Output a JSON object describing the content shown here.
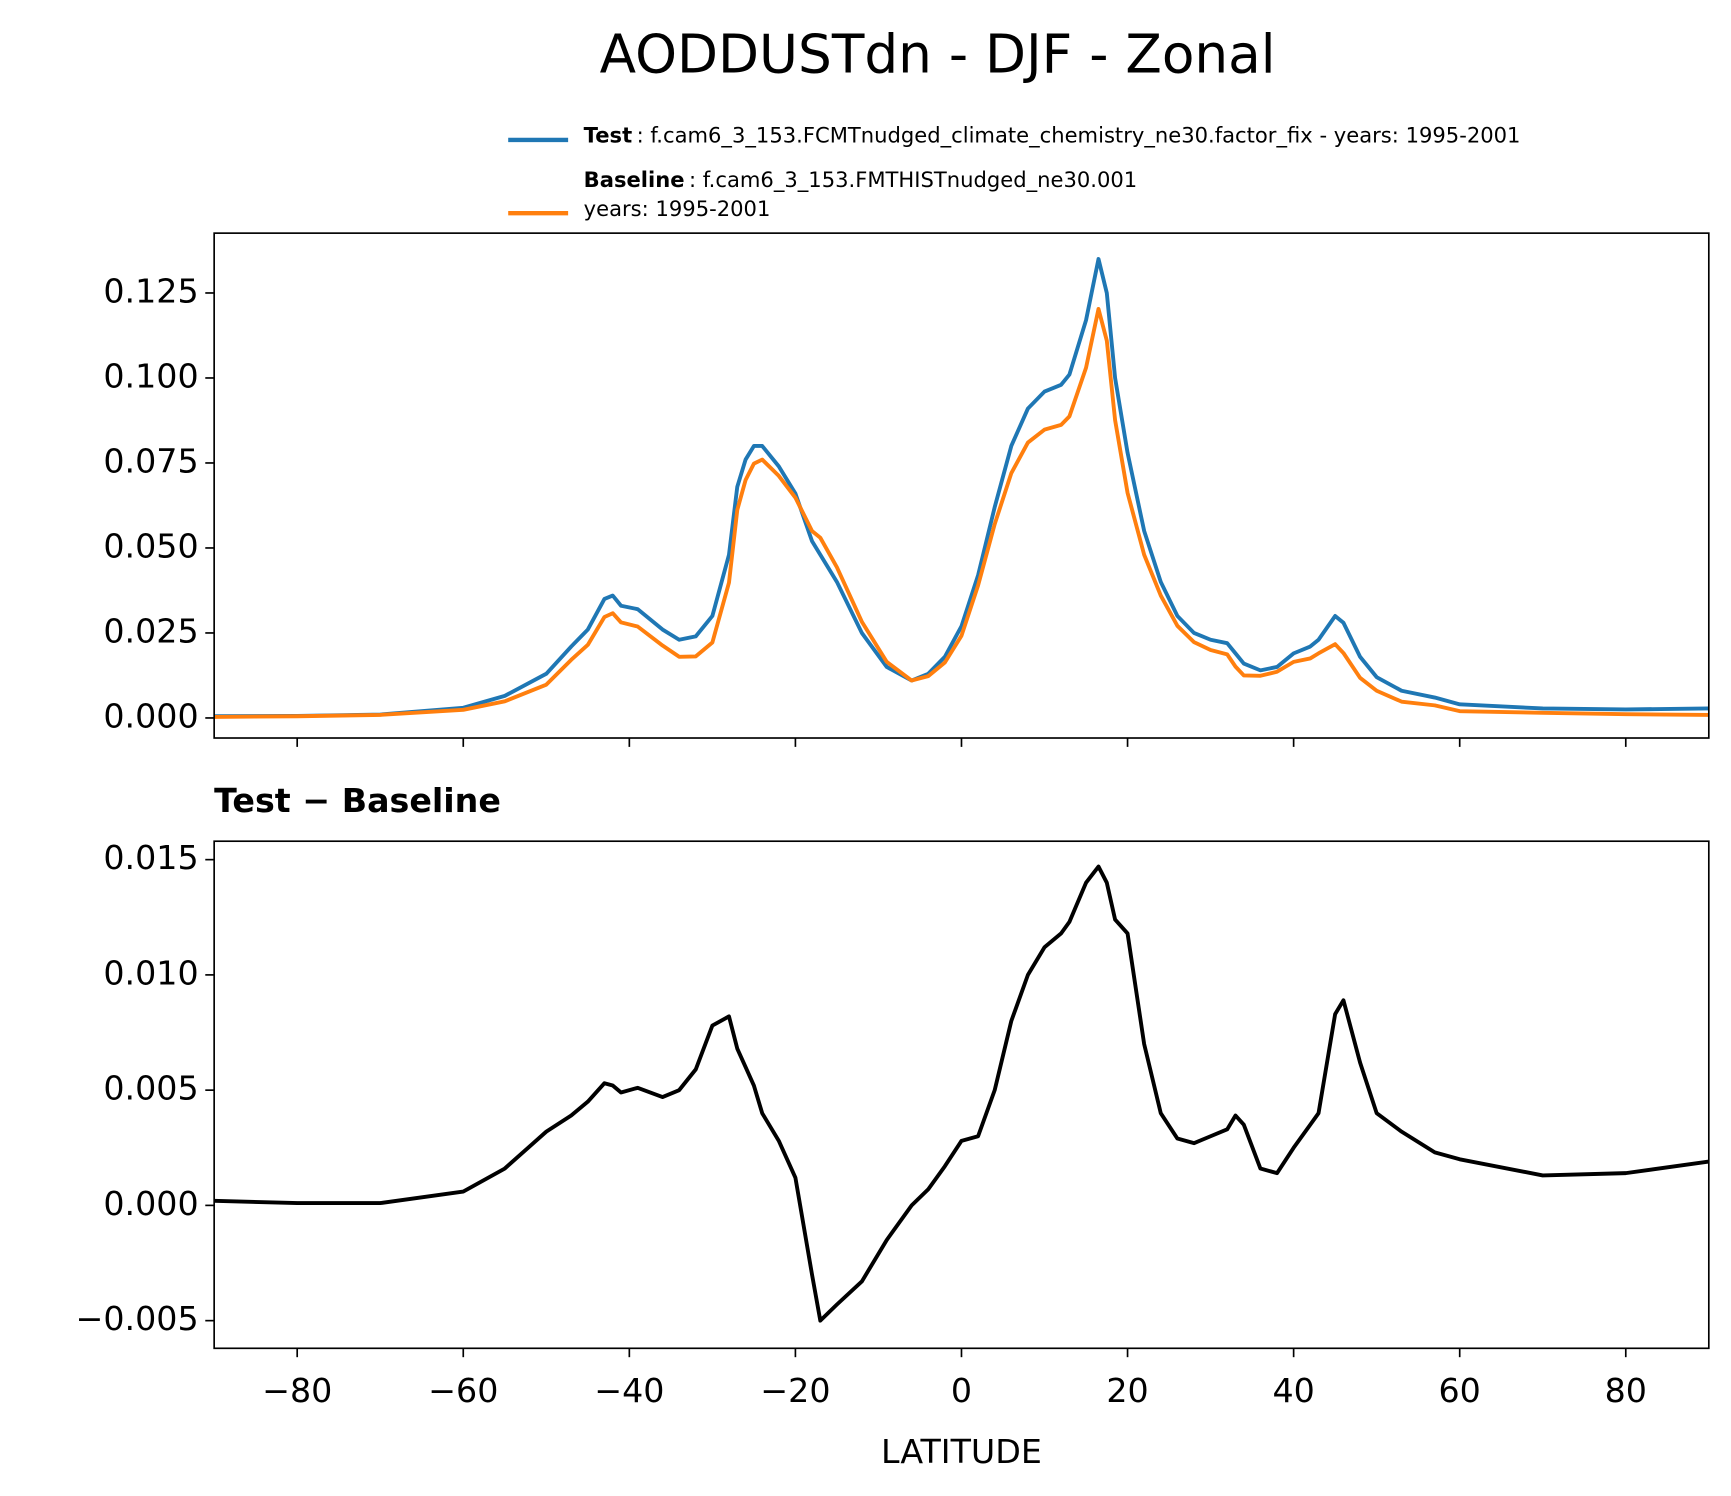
{
  "title": "AODDUSTdn - DJF - Zonal",
  "chart_data": [
    {
      "type": "line",
      "xlim": [
        -90,
        90
      ],
      "ylim": [
        -0.0059,
        0.1426
      ],
      "xticks": [
        -80,
        -60,
        -40,
        -20,
        0,
        20,
        40,
        60,
        80
      ],
      "yticks": [
        {
          "value": 0,
          "label": "0.000"
        },
        {
          "value": 0.025,
          "label": "0.025"
        },
        {
          "value": 0.05,
          "label": "0.050"
        },
        {
          "value": 0.075,
          "label": "0.075"
        },
        {
          "value": 0.1,
          "label": "0.100"
        },
        {
          "value": 0.125,
          "label": "0.125"
        }
      ],
      "x": [
        -90,
        -80,
        -70,
        -60,
        -55,
        -50,
        -47,
        -45,
        -43,
        -42,
        -41,
        -39,
        -36,
        -34,
        -32,
        -30,
        -28,
        -27,
        -26,
        -25,
        -24,
        -22,
        -20,
        -18,
        -17,
        -15,
        -12,
        -9,
        -6,
        -4,
        -2,
        0,
        2,
        4,
        6,
        8,
        10,
        12,
        13,
        15,
        16.5,
        17.5,
        18.5,
        20,
        22,
        24,
        26,
        28,
        30,
        32,
        33,
        34,
        36,
        38,
        40,
        42,
        43,
        45,
        46,
        48,
        50,
        53,
        57,
        60,
        70,
        80,
        90
      ],
      "series": [
        {
          "name": "Test",
          "label_lines": [
            ": f.cam6_3_153.FCMTnudged_climate_chemistry_ne30.factor_fix - years: 1995-2001"
          ],
          "color": "#1f77b4",
          "values": [
            0.0005,
            0.0006,
            0.001,
            0.003,
            0.0065,
            0.013,
            0.021,
            0.026,
            0.035,
            0.036,
            0.033,
            0.032,
            0.026,
            0.023,
            0.024,
            0.03,
            0.048,
            0.068,
            0.076,
            0.08,
            0.08,
            0.074,
            0.066,
            0.052,
            0.048,
            0.04,
            0.025,
            0.015,
            0.011,
            0.013,
            0.018,
            0.027,
            0.042,
            0.062,
            0.08,
            0.091,
            0.096,
            0.098,
            0.101,
            0.117,
            0.135,
            0.125,
            0.1,
            0.078,
            0.055,
            0.04,
            0.03,
            0.025,
            0.023,
            0.022,
            0.019,
            0.016,
            0.014,
            0.015,
            0.019,
            0.021,
            0.023,
            0.03,
            0.028,
            0.018,
            0.012,
            0.008,
            0.006,
            0.004,
            0.0028,
            0.0025,
            0.0028
          ]
        },
        {
          "name": "Baseline",
          "label_lines": [
            ": f.cam6_3_153.FMTHISTnudged_ne30.001",
            "years: 1995-2001"
          ],
          "color": "#ff7f0e",
          "values": [
            0.0003,
            0.0005,
            0.0009,
            0.0024,
            0.0049,
            0.0098,
            0.0171,
            0.0215,
            0.0297,
            0.0308,
            0.0281,
            0.0269,
            0.0213,
            0.018,
            0.0181,
            0.0222,
            0.0398,
            0.0612,
            0.07,
            0.0748,
            0.076,
            0.0712,
            0.0648,
            0.055,
            0.053,
            0.0443,
            0.0283,
            0.0165,
            0.011,
            0.0123,
            0.0163,
            0.0242,
            0.039,
            0.057,
            0.072,
            0.081,
            0.0848,
            0.0862,
            0.0887,
            0.103,
            0.1203,
            0.111,
            0.0876,
            0.0662,
            0.048,
            0.036,
            0.0271,
            0.0223,
            0.02,
            0.0187,
            0.0151,
            0.0125,
            0.0124,
            0.0136,
            0.0165,
            0.0175,
            0.019,
            0.0217,
            0.0191,
            0.0118,
            0.008,
            0.0048,
            0.0037,
            0.002,
            0.0015,
            0.0011,
            0.0009
          ]
        }
      ]
    },
    {
      "type": "line",
      "title": "Test − Baseline",
      "xlabel": "LATITUDE",
      "xlim": [
        -90,
        90
      ],
      "ylim": [
        -0.0062,
        0.0158
      ],
      "xticks": [
        {
          "value": -80,
          "label": "−80"
        },
        {
          "value": -60,
          "label": "−60"
        },
        {
          "value": -40,
          "label": "−40"
        },
        {
          "value": -20,
          "label": "−20"
        },
        0,
        20,
        40,
        60,
        80
      ],
      "yticks": [
        {
          "value": -0.005,
          "label": "−0.005"
        },
        {
          "value": 0,
          "label": "0.000"
        },
        {
          "value": 0.005,
          "label": "0.005"
        },
        {
          "value": 0.01,
          "label": "0.010"
        },
        {
          "value": 0.015,
          "label": "0.015"
        }
      ],
      "x": [
        -90,
        -80,
        -70,
        -60,
        -55,
        -50,
        -47,
        -45,
        -43,
        -42,
        -41,
        -39,
        -36,
        -34,
        -32,
        -30,
        -28,
        -27,
        -26,
        -25,
        -24,
        -22,
        -20,
        -18,
        -17,
        -15,
        -12,
        -9,
        -6,
        -4,
        -2,
        0,
        2,
        4,
        6,
        8,
        10,
        12,
        13,
        15,
        16.5,
        17.5,
        18.5,
        20,
        22,
        24,
        26,
        28,
        30,
        32,
        33,
        34,
        36,
        38,
        40,
        42,
        43,
        45,
        46,
        48,
        50,
        53,
        57,
        60,
        70,
        80,
        90
      ],
      "series": [
        {
          "color": "#000000",
          "values": [
            0.0002,
            0.0001,
            0.0001,
            0.0006,
            0.0016,
            0.0032,
            0.0039,
            0.0045,
            0.0053,
            0.0052,
            0.0049,
            0.0051,
            0.0047,
            0.005,
            0.0059,
            0.0078,
            0.0082,
            0.0068,
            0.006,
            0.0052,
            0.004,
            0.0028,
            0.0012,
            -0.003,
            -0.005,
            -0.0043,
            -0.0033,
            -0.0015,
            0.0,
            0.0007,
            0.0017,
            0.0028,
            0.003,
            0.005,
            0.008,
            0.01,
            0.0112,
            0.0118,
            0.0123,
            0.014,
            0.0147,
            0.014,
            0.0124,
            0.0118,
            0.007,
            0.004,
            0.0029,
            0.0027,
            0.003,
            0.0033,
            0.0039,
            0.0035,
            0.0016,
            0.0014,
            0.0025,
            0.0035,
            0.004,
            0.0083,
            0.0089,
            0.0062,
            0.004,
            0.0032,
            0.0023,
            0.002,
            0.0013,
            0.0014,
            0.0019
          ]
        }
      ]
    }
  ]
}
